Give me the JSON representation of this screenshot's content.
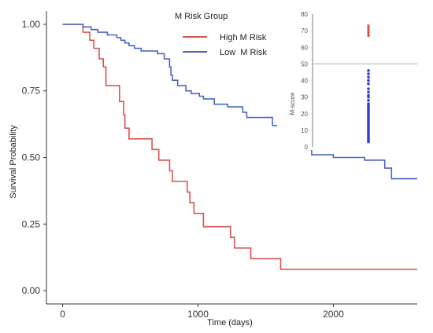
{
  "chart_data": [
    {
      "type": "line",
      "xlabel": "Time (days)",
      "ylabel": "Survival Probability",
      "xlim": [
        -120,
        2620
      ],
      "ylim": [
        -0.05,
        1.05
      ],
      "x_ticks": [
        0,
        1000,
        2000
      ],
      "y_ticks": [
        0.0,
        0.25,
        0.5,
        0.75,
        1.0
      ],
      "y_tick_labels": [
        "0.00",
        "0.25",
        "0.50",
        "0.75",
        "1.00"
      ],
      "grid": false,
      "legend": {
        "title": "M Risk Group",
        "position": "top-center"
      },
      "series": [
        {
          "name": "High M Risk",
          "color": "#d9534f",
          "points": [
            [
              0,
              1.0
            ],
            [
              150,
              1.0
            ],
            [
              150,
              0.97
            ],
            [
              200,
              0.97
            ],
            [
              200,
              0.94
            ],
            [
              230,
              0.94
            ],
            [
              230,
              0.91
            ],
            [
              270,
              0.91
            ],
            [
              270,
              0.87
            ],
            [
              300,
              0.87
            ],
            [
              300,
              0.84
            ],
            [
              320,
              0.84
            ],
            [
              320,
              0.77
            ],
            [
              420,
              0.77
            ],
            [
              420,
              0.71
            ],
            [
              450,
              0.71
            ],
            [
              450,
              0.66
            ],
            [
              460,
              0.66
            ],
            [
              460,
              0.61
            ],
            [
              490,
              0.61
            ],
            [
              490,
              0.57
            ],
            [
              660,
              0.57
            ],
            [
              660,
              0.53
            ],
            [
              710,
              0.53
            ],
            [
              710,
              0.49
            ],
            [
              790,
              0.49
            ],
            [
              790,
              0.45
            ],
            [
              810,
              0.45
            ],
            [
              810,
              0.41
            ],
            [
              920,
              0.41
            ],
            [
              920,
              0.37
            ],
            [
              940,
              0.37
            ],
            [
              940,
              0.33
            ],
            [
              970,
              0.33
            ],
            [
              970,
              0.29
            ],
            [
              1040,
              0.29
            ],
            [
              1040,
              0.24
            ],
            [
              1240,
              0.24
            ],
            [
              1240,
              0.2
            ],
            [
              1270,
              0.2
            ],
            [
              1270,
              0.16
            ],
            [
              1390,
              0.16
            ],
            [
              1390,
              0.12
            ],
            [
              1610,
              0.12
            ],
            [
              1610,
              0.08
            ],
            [
              2620,
              0.08
            ]
          ]
        },
        {
          "name": "Low  M Risk",
          "color": "#4a66c4",
          "points": [
            [
              0,
              1.0
            ],
            [
              150,
              1.0
            ],
            [
              150,
              0.99
            ],
            [
              210,
              0.99
            ],
            [
              210,
              0.98
            ],
            [
              260,
              0.98
            ],
            [
              260,
              0.97
            ],
            [
              330,
              0.97
            ],
            [
              330,
              0.96
            ],
            [
              400,
              0.96
            ],
            [
              400,
              0.95
            ],
            [
              430,
              0.95
            ],
            [
              430,
              0.94
            ],
            [
              460,
              0.94
            ],
            [
              460,
              0.93
            ],
            [
              490,
              0.93
            ],
            [
              490,
              0.92
            ],
            [
              530,
              0.92
            ],
            [
              530,
              0.91
            ],
            [
              580,
              0.91
            ],
            [
              580,
              0.9
            ],
            [
              700,
              0.9
            ],
            [
              700,
              0.89
            ],
            [
              750,
              0.89
            ],
            [
              750,
              0.87
            ],
            [
              790,
              0.87
            ],
            [
              790,
              0.84
            ],
            [
              800,
              0.84
            ],
            [
              800,
              0.81
            ],
            [
              810,
              0.81
            ],
            [
              810,
              0.79
            ],
            [
              850,
              0.79
            ],
            [
              850,
              0.77
            ],
            [
              910,
              0.77
            ],
            [
              910,
              0.75
            ],
            [
              950,
              0.75
            ],
            [
              950,
              0.74
            ],
            [
              1010,
              0.74
            ],
            [
              1010,
              0.73
            ],
            [
              1040,
              0.73
            ],
            [
              1040,
              0.72
            ],
            [
              1120,
              0.72
            ],
            [
              1120,
              0.7
            ],
            [
              1220,
              0.7
            ],
            [
              1220,
              0.69
            ],
            [
              1330,
              0.69
            ],
            [
              1330,
              0.67
            ],
            [
              1360,
              0.67
            ],
            [
              1360,
              0.65
            ],
            [
              1550,
              0.65
            ],
            [
              1550,
              0.62
            ],
            [
              1610,
              0.62
            ],
            [
              1610,
              0.6
            ],
            [
              1680,
              0.6
            ],
            [
              1680,
              0.58
            ],
            [
              1720,
              0.58
            ],
            [
              1720,
              0.55
            ],
            [
              1780,
              0.55
            ],
            [
              1780,
              0.53
            ],
            [
              1840,
              0.53
            ],
            [
              1840,
              0.51
            ],
            [
              2000,
              0.51
            ],
            [
              2000,
              0.5
            ],
            [
              2230,
              0.5
            ],
            [
              2230,
              0.49
            ],
            [
              2380,
              0.49
            ],
            [
              2380,
              0.46
            ],
            [
              2430,
              0.46
            ],
            [
              2430,
              0.42
            ],
            [
              2620,
              0.42
            ]
          ]
        }
      ]
    },
    {
      "type": "scatter",
      "ylabel": "M-score",
      "ylim": [
        0,
        80
      ],
      "y_ticks": [
        0,
        10,
        20,
        30,
        40,
        50,
        60,
        70,
        80
      ],
      "threshold": 50,
      "series": [
        {
          "name": "High M Risk",
          "color": "#d9534f",
          "values": [
            67,
            68,
            69,
            70,
            71,
            72,
            73
          ]
        },
        {
          "name": "Low  M Risk",
          "color": "#2f3fcf",
          "values": [
            3,
            4,
            5,
            6,
            7,
            8,
            9,
            10,
            11,
            12,
            13,
            14,
            15,
            16,
            17,
            18,
            19,
            20,
            21,
            22,
            23,
            24,
            25,
            26,
            28,
            30,
            31,
            33,
            35,
            38,
            40,
            42,
            44,
            46
          ]
        }
      ]
    }
  ]
}
